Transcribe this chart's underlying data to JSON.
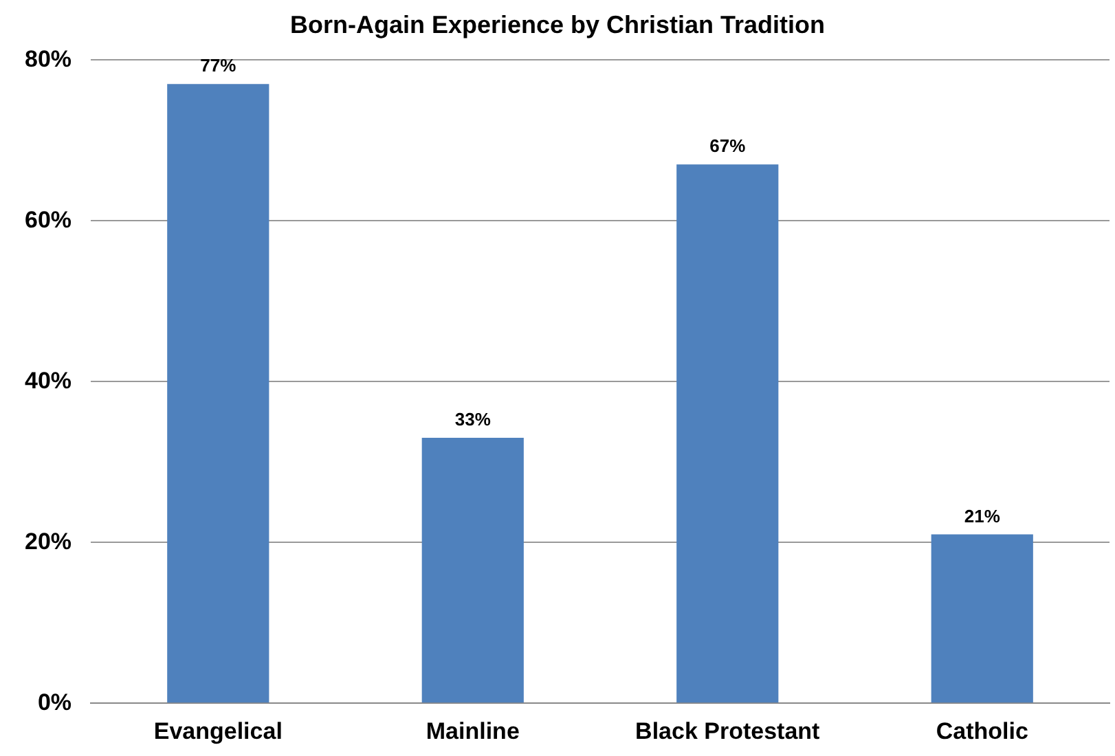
{
  "chart_data": {
    "type": "bar",
    "title": "Born-Again Experience by Christian Tradition",
    "categories": [
      "Evangelical",
      "Mainline",
      "Black Protestant",
      "Catholic"
    ],
    "series": [
      {
        "color": "#4f81bd",
        "values": [
          77,
          33,
          67,
          21
        ],
        "value_labels": [
          "77%",
          "33%",
          "67%",
          "21%"
        ]
      }
    ],
    "ylim": [
      0,
      80
    ],
    "yticks": [
      {
        "value": 0,
        "label": "0%"
      },
      {
        "value": 20,
        "label": "20%"
      },
      {
        "value": 40,
        "label": "40%"
      },
      {
        "value": 60,
        "label": "60%"
      },
      {
        "value": 80,
        "label": "80%"
      }
    ],
    "grid": "y",
    "legend": false
  }
}
